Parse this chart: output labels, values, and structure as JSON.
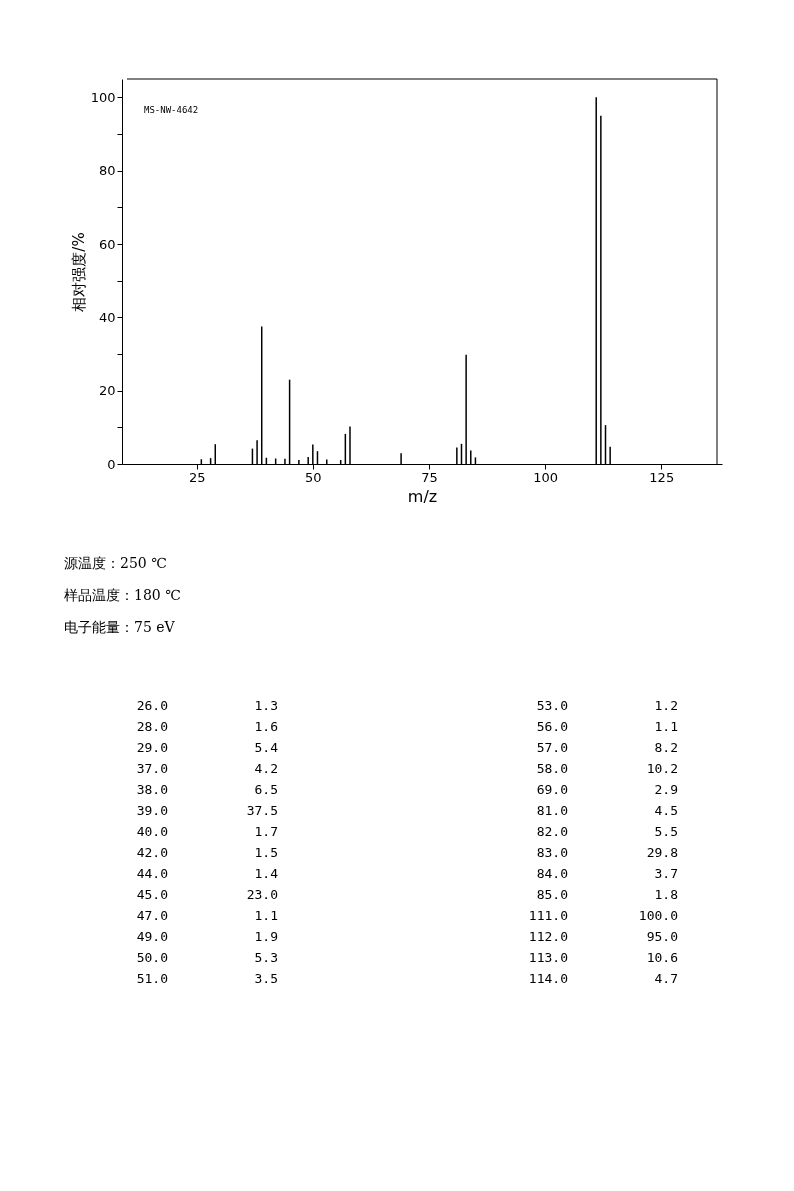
{
  "chart_data": [
    {
      "type": "bar",
      "xlabel": "m/z",
      "ylabel": "相对强度/%",
      "x": [
        26,
        28,
        29,
        37,
        38,
        39,
        40,
        42,
        44,
        45,
        47,
        49,
        50,
        51,
        53,
        56,
        57,
        58,
        69,
        81,
        82,
        83,
        84,
        85,
        111,
        112,
        113,
        114
      ],
      "values": [
        1.3,
        1.6,
        5.4,
        4.2,
        6.5,
        37.5,
        1.7,
        1.5,
        1.4,
        23.0,
        1.1,
        1.9,
        5.3,
        3.5,
        1.2,
        1.1,
        8.2,
        10.2,
        2.9,
        4.5,
        5.5,
        29.8,
        3.7,
        1.8,
        100.0,
        95.0,
        10.6,
        4.7
      ],
      "color": "#000000",
      "xlim": [
        10,
        137
      ],
      "xticks": [
        25,
        50,
        75,
        100,
        125
      ],
      "ylim": [
        0,
        105
      ],
      "yticks": [
        0,
        {
          "value": 10,
          "label": null
        },
        20,
        {
          "value": 30,
          "label": null
        },
        40,
        {
          "value": 50,
          "label": null
        },
        60,
        {
          "value": 70,
          "label": null
        },
        80,
        {
          "value": 90,
          "label": null
        },
        100
      ],
      "grid": false,
      "annotations": [
        "MS-NW-4642",
        "源温度：250 ℃",
        "样品温度：180 ℃",
        "电子能量：75 eV"
      ]
    },
    {
      "type": "other",
      "data_labels": true,
      "value_labels": [
        "1.3",
        "1.6",
        "5.4",
        "4.2",
        "6.5",
        "37.5",
        "1.7",
        "1.5",
        "1.4",
        "23.0",
        "1.1",
        "1.9",
        "5.3",
        "3.5",
        "1.2",
        "1.1",
        "8.2",
        "10.2",
        "2.9",
        "4.5",
        "5.5",
        "29.8",
        "3.7",
        "1.8",
        "100.0",
        "95.0",
        "10.6",
        "4.7"
      ],
      "categories": [
        "26.0",
        "28.0",
        "29.0",
        "37.0",
        "38.0",
        "39.0",
        "40.0",
        "42.0",
        "44.0",
        "45.0",
        "47.0",
        "49.0",
        "50.0",
        "51.0",
        "53.0",
        "56.0",
        "57.0",
        "58.0",
        "69.0",
        "81.0",
        "82.0",
        "83.0",
        "84.0",
        "85.0",
        "111.0",
        "112.0",
        "113.0",
        "114.0"
      ],
      "values": [
        1.3,
        1.6,
        5.4,
        4.2,
        6.5,
        37.5,
        1.7,
        1.5,
        1.4,
        23.0,
        1.1,
        1.9,
        5.3,
        3.5,
        1.2,
        1.1,
        8.2,
        10.2,
        2.9,
        4.5,
        5.5,
        29.8,
        3.7,
        1.8,
        100.0,
        95.0,
        10.6,
        4.7
      ]
    }
  ]
}
